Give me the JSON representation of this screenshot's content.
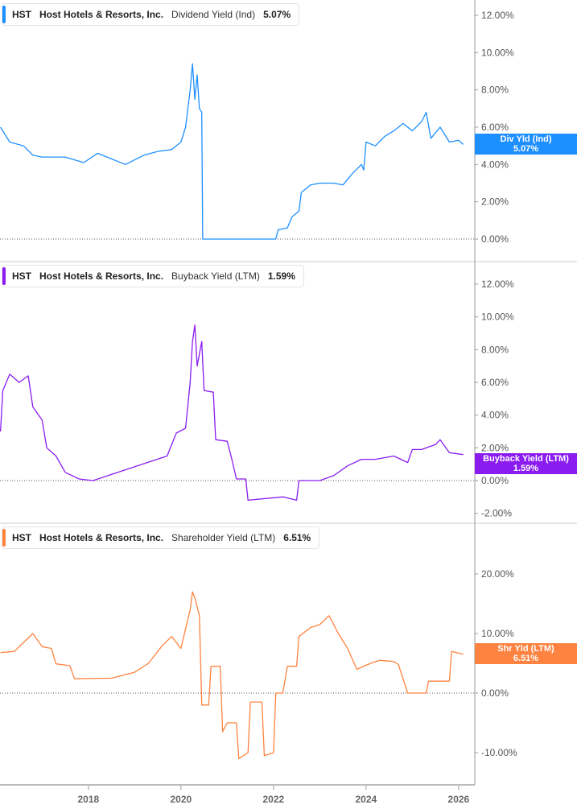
{
  "chart_data": [
    {
      "type": "line",
      "ticker": "HST",
      "company": "Host Hotels & Resorts, Inc.",
      "metric": "Dividend Yield (Ind)",
      "value_label": "5.07%",
      "badge": {
        "label": "Div Yld (Ind)",
        "value": "5.07%"
      },
      "color": "#1e8fff",
      "ylim": [
        0,
        12
      ],
      "yticks": [
        0,
        2,
        4,
        6,
        8,
        10,
        12
      ],
      "ytick_labels": [
        "0.00%",
        "2.00%",
        "4.00%",
        "6.00%",
        "8.00%",
        "10.00%",
        "12.00%"
      ],
      "x": [
        2016.1,
        2016.3,
        2016.6,
        2016.8,
        2017.0,
        2017.5,
        2017.9,
        2018.2,
        2018.5,
        2018.8,
        2019.2,
        2019.5,
        2019.8,
        2020.0,
        2020.1,
        2020.2,
        2020.25,
        2020.3,
        2020.35,
        2020.4,
        2020.45,
        2020.47,
        2022.05,
        2022.1,
        2022.3,
        2022.4,
        2022.55,
        2022.6,
        2022.8,
        2023.0,
        2023.3,
        2023.5,
        2023.7,
        2023.9,
        2023.95,
        2024.0,
        2024.2,
        2024.4,
        2024.6,
        2024.8,
        2025.0,
        2025.2,
        2025.3,
        2025.4,
        2025.6,
        2025.8,
        2026.0,
        2026.1
      ],
      "y": [
        6.0,
        5.2,
        5.0,
        4.5,
        4.4,
        4.4,
        4.1,
        4.6,
        4.3,
        4.0,
        4.5,
        4.7,
        4.8,
        5.2,
        6.0,
        8.0,
        9.4,
        7.5,
        8.8,
        7.0,
        6.8,
        0,
        0,
        0.5,
        0.6,
        1.2,
        1.5,
        2.5,
        2.9,
        3.0,
        3.0,
        2.9,
        3.5,
        4.0,
        3.7,
        5.2,
        5.0,
        5.5,
        5.8,
        6.2,
        5.8,
        6.3,
        6.8,
        5.4,
        6.0,
        5.2,
        5.3,
        5.07
      ]
    },
    {
      "type": "line",
      "ticker": "HST",
      "company": "Host Hotels & Resorts, Inc.",
      "metric": "Buyback Yield (LTM)",
      "value_label": "1.59%",
      "badge": {
        "label": "Buyback Yield (LTM)",
        "value": "1.59%"
      },
      "color": "#8a1cf0",
      "ylim": [
        -2,
        12
      ],
      "yticks": [
        -2,
        0,
        2,
        4,
        6,
        8,
        10,
        12
      ],
      "ytick_labels": [
        "-2.00%",
        "0.00%",
        "2.00%",
        "4.00%",
        "6.00%",
        "8.00%",
        "10.00%",
        "12.00%"
      ],
      "x": [
        2016.1,
        2016.15,
        2016.3,
        2016.5,
        2016.7,
        2016.8,
        2017.0,
        2017.1,
        2017.3,
        2017.5,
        2017.8,
        2018.1,
        2019.7,
        2019.9,
        2020.1,
        2020.2,
        2020.25,
        2020.3,
        2020.35,
        2020.45,
        2020.5,
        2020.7,
        2020.75,
        2021.0,
        2021.1,
        2021.2,
        2021.4,
        2021.45,
        2022.2,
        2022.5,
        2022.55,
        2023.0,
        2023.3,
        2023.6,
        2023.9,
        2024.2,
        2024.6,
        2024.9,
        2025.0,
        2025.2,
        2025.5,
        2025.6,
        2025.8,
        2026.1
      ],
      "y": [
        3.0,
        5.5,
        6.5,
        6.0,
        6.4,
        4.5,
        3.7,
        2.0,
        1.5,
        0.5,
        0.1,
        0,
        1.5,
        2.9,
        3.2,
        6.0,
        8.5,
        9.5,
        7.0,
        8.5,
        5.5,
        5.4,
        2.5,
        2.4,
        1.3,
        0.1,
        0.1,
        -1.2,
        -1.0,
        -1.2,
        0,
        0,
        0.3,
        0.9,
        1.3,
        1.3,
        1.5,
        1.1,
        1.9,
        1.9,
        2.2,
        2.5,
        1.7,
        1.59
      ]
    },
    {
      "type": "line",
      "ticker": "HST",
      "company": "Host Hotels & Resorts, Inc.",
      "metric": "Shareholder Yield (LTM)",
      "value_label": "6.51%",
      "badge": {
        "label": "Shr Yld (LTM)",
        "value": "6.51%"
      },
      "color": "#ff8340",
      "ylim": [
        -13,
        24
      ],
      "yticks": [
        -10,
        0,
        10,
        20
      ],
      "ytick_labels": [
        "-10.00%",
        "0.00%",
        "10.00%",
        "20.00%"
      ],
      "x": [
        2016.1,
        2016.4,
        2016.6,
        2016.8,
        2017.0,
        2017.2,
        2017.3,
        2017.6,
        2017.7,
        2018.5,
        2019.0,
        2019.3,
        2019.6,
        2019.8,
        2020.0,
        2020.2,
        2020.25,
        2020.3,
        2020.4,
        2020.45,
        2020.6,
        2020.65,
        2020.85,
        2020.9,
        2021.0,
        2021.2,
        2021.25,
        2021.45,
        2021.5,
        2021.75,
        2021.8,
        2022.0,
        2022.05,
        2022.2,
        2022.3,
        2022.5,
        2022.55,
        2022.8,
        2023.0,
        2023.2,
        2023.4,
        2023.6,
        2023.8,
        2024.1,
        2024.3,
        2024.6,
        2024.7,
        2024.9,
        2025.3,
        2025.35,
        2025.8,
        2025.85,
        2026.1
      ],
      "y": [
        6.8,
        7.0,
        8.5,
        10,
        7.8,
        7.5,
        4.9,
        4.6,
        2.4,
        2.5,
        3.5,
        5.0,
        8.0,
        9.5,
        7.5,
        14,
        17,
        16,
        13,
        -2.0,
        -2.0,
        4.5,
        4.5,
        -6.5,
        -5.0,
        -5.0,
        -11,
        -10,
        -1.5,
        -1.5,
        -10.5,
        -10,
        0,
        0,
        4.5,
        4.5,
        9.5,
        11,
        11.5,
        13,
        10,
        7.5,
        4,
        5,
        5.5,
        5.3,
        4.8,
        0,
        0,
        2.0,
        2.0,
        7.0,
        6.51
      ]
    }
  ],
  "x_axis": {
    "range": [
      2016.09,
      2026.35
    ],
    "ticks": [
      2018,
      2020,
      2022,
      2024,
      2026
    ],
    "tick_labels": [
      "2018",
      "2020",
      "2022",
      "2024",
      "2026"
    ]
  }
}
